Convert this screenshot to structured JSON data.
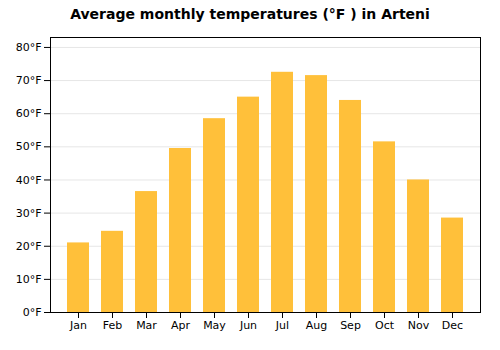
{
  "chart_data": {
    "type": "bar",
    "title": "Average monthly temperatures (°F ) in Arteni",
    "categories": [
      "Jan",
      "Feb",
      "Mar",
      "Apr",
      "May",
      "Jun",
      "Jul",
      "Aug",
      "Sep",
      "Oct",
      "Nov",
      "Dec"
    ],
    "values": [
      21,
      24.5,
      36.5,
      49.5,
      58.5,
      65,
      72.5,
      71.5,
      64,
      51.5,
      40,
      28.5
    ],
    "color": "#FFC03A",
    "ylim": [
      0,
      83
    ],
    "yticks": [
      {
        "value": 0,
        "label": "0°F"
      },
      {
        "value": 10,
        "label": "10°F"
      },
      {
        "value": 20,
        "label": "20°F"
      },
      {
        "value": 30,
        "label": "30°F"
      },
      {
        "value": 40,
        "label": "40°F"
      },
      {
        "value": 50,
        "label": "50°F"
      },
      {
        "value": 60,
        "label": "60°F"
      },
      {
        "value": 70,
        "label": "70°F"
      },
      {
        "value": 80,
        "label": "80°F"
      }
    ],
    "grid": true
  }
}
